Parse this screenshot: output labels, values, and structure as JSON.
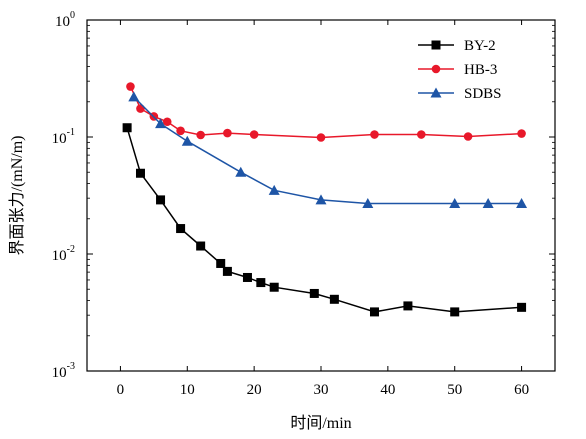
{
  "chart_data": {
    "type": "line",
    "xlabel": "时间/min",
    "ylabel": "界面张力/(mN/m)",
    "x_ticks": [
      "0",
      "10",
      "20",
      "30",
      "40",
      "50",
      "60"
    ],
    "xlim": [
      -5,
      65
    ],
    "y_scale": "log",
    "ylim": [
      0.001,
      1
    ],
    "y_ticks": [
      {
        "base": "10",
        "exp": "0"
      },
      {
        "base": "10",
        "exp": "-1"
      },
      {
        "base": "10",
        "exp": "-2"
      },
      {
        "base": "10",
        "exp": "-3"
      }
    ],
    "legend_position": "top-right",
    "series": [
      {
        "name": "BY-2",
        "color": "#000000",
        "marker": "square",
        "points": [
          [
            1,
            0.12
          ],
          [
            3,
            0.049
          ],
          [
            6,
            0.029
          ],
          [
            9,
            0.0165
          ],
          [
            12,
            0.0117
          ],
          [
            15,
            0.0083
          ],
          [
            16,
            0.0071
          ],
          [
            19,
            0.0063
          ],
          [
            21,
            0.0057
          ],
          [
            23,
            0.0052
          ],
          [
            29,
            0.0046
          ],
          [
            32,
            0.0041
          ],
          [
            38,
            0.0032
          ],
          [
            43,
            0.0036
          ],
          [
            50,
            0.0032
          ],
          [
            60,
            0.0035
          ]
        ]
      },
      {
        "name": "HB-3",
        "color": "#e8182a",
        "marker": "circle",
        "points": [
          [
            1.5,
            0.27
          ],
          [
            3,
            0.175
          ],
          [
            5,
            0.15
          ],
          [
            7,
            0.135
          ],
          [
            9,
            0.113
          ],
          [
            12,
            0.104
          ],
          [
            16,
            0.108
          ],
          [
            20,
            0.105
          ],
          [
            30,
            0.099
          ],
          [
            38,
            0.105
          ],
          [
            45,
            0.105
          ],
          [
            52,
            0.101
          ],
          [
            60,
            0.107
          ]
        ]
      },
      {
        "name": "SDBS",
        "color": "#1e55a6",
        "marker": "triangle",
        "points": [
          [
            2,
            0.22
          ],
          [
            6,
            0.13
          ],
          [
            10,
            0.092
          ],
          [
            18,
            0.05
          ],
          [
            23,
            0.035
          ],
          [
            30,
            0.029
          ],
          [
            37,
            0.027
          ],
          [
            50,
            0.027
          ],
          [
            55,
            0.027
          ],
          [
            60,
            0.027
          ]
        ]
      }
    ]
  }
}
